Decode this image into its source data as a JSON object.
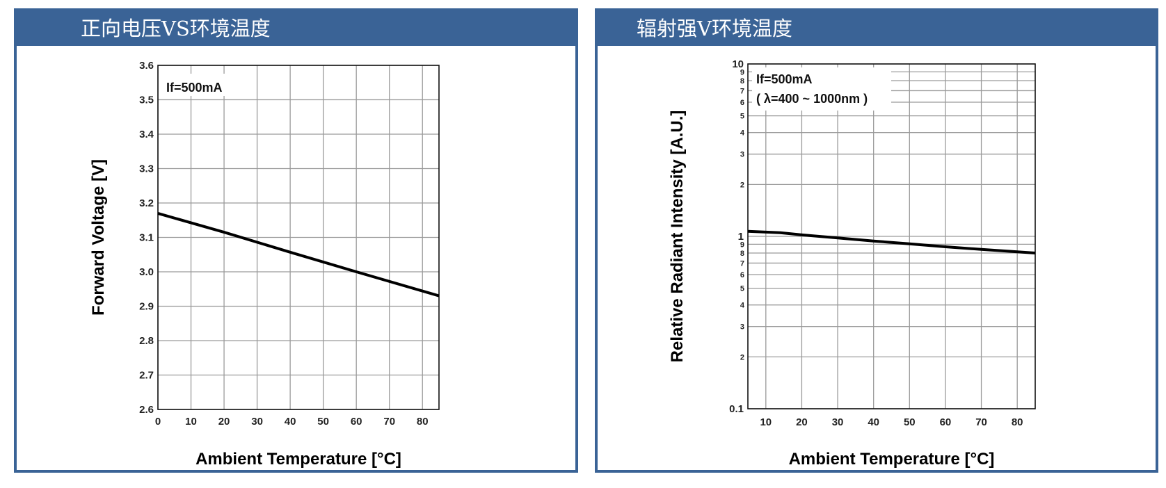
{
  "chart_data": [
    {
      "type": "line",
      "title": "正向电压VS环境温度",
      "xlabel": "Ambient Temperature [°C]",
      "ylabel": "Forward Voltage [V]",
      "xlim": [
        0,
        85
      ],
      "ylim": [
        2.6,
        3.6
      ],
      "x_ticks": [
        "0",
        "10",
        "20",
        "30",
        "40",
        "50",
        "60",
        "70",
        "80"
      ],
      "y_ticks": [
        "2.6",
        "2.7",
        "2.8",
        "2.9",
        "3.0",
        "3.1",
        "3.2",
        "3.3",
        "3.4",
        "3.5",
        "3.6"
      ],
      "annotations": [
        "If=500mA"
      ],
      "grid": true,
      "series": [
        {
          "x": [
            0,
            20,
            40,
            60,
            85
          ],
          "y": [
            3.17,
            3.115,
            3.057,
            3.0,
            2.93
          ]
        }
      ]
    },
    {
      "type": "line",
      "title": "辐射强V环境温度",
      "xlabel": "Ambient Temperature [°C]",
      "ylabel": "Relative Radiant Intensity [A.U.]",
      "xlim": [
        5,
        85
      ],
      "ylim": [
        0.1,
        10
      ],
      "y_scale": "log",
      "x_ticks": [
        "10",
        "20",
        "30",
        "40",
        "50",
        "60",
        "70",
        "80"
      ],
      "y_major_ticks": [
        "0.1",
        "1",
        "10"
      ],
      "y_minor_ticks": [
        "2",
        "3",
        "4",
        "5",
        "6",
        "7",
        "8",
        "9"
      ],
      "annotations": [
        "If=500mA",
        "( λ=400 ~ 1000nm )"
      ],
      "grid": true,
      "series": [
        {
          "x": [
            5,
            14,
            20,
            30,
            40,
            50,
            60,
            70,
            85
          ],
          "y": [
            1.07,
            1.05,
            1.02,
            0.98,
            0.94,
            0.905,
            0.87,
            0.84,
            0.8
          ]
        }
      ]
    }
  ]
}
